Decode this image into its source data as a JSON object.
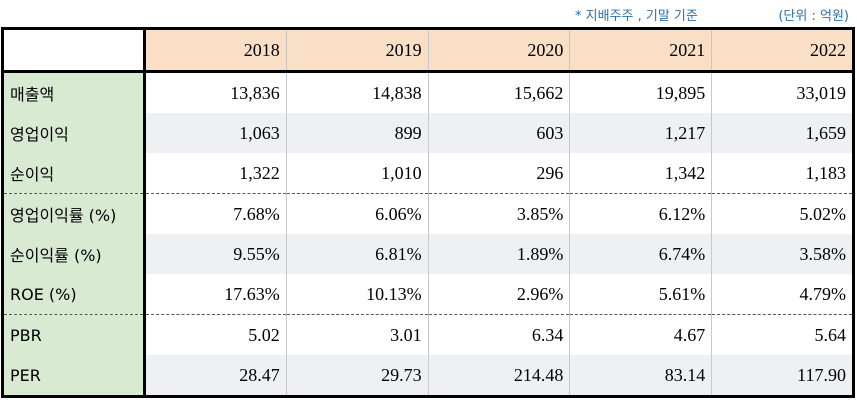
{
  "notes": {
    "basis": "* 지배주주 , 기말 기준",
    "unit": "(단위 : 억원)"
  },
  "table": {
    "years": [
      "2018",
      "2019",
      "2020",
      "2021",
      "2022"
    ],
    "rows": [
      {
        "label": "매출액",
        "values": [
          "13,836",
          "14,838",
          "15,662",
          "19,895",
          "33,019"
        ]
      },
      {
        "label": "영업이익",
        "values": [
          "1,063",
          "899",
          "603",
          "1,217",
          "1,659"
        ]
      },
      {
        "label": "순이익",
        "values": [
          "1,322",
          "1,010",
          "296",
          "1,342",
          "1,183"
        ]
      },
      {
        "label": "영업이익률 (%)",
        "values": [
          "7.68%",
          "6.06%",
          "3.85%",
          "6.12%",
          "5.02%"
        ]
      },
      {
        "label": "순이익률 (%)",
        "values": [
          "9.55%",
          "6.81%",
          "1.89%",
          "6.74%",
          "3.58%"
        ]
      },
      {
        "label": "ROE (%)",
        "values": [
          "17.63%",
          "10.13%",
          "2.96%",
          "5.61%",
          "4.79%"
        ]
      },
      {
        "label": "PBR",
        "values": [
          "5.02",
          "3.01",
          "6.34",
          "4.67",
          "5.64"
        ]
      },
      {
        "label": "PER",
        "values": [
          "28.47",
          "29.73",
          "214.48",
          "83.14",
          "117.90"
        ]
      }
    ]
  },
  "colors": {
    "header_fill": "#f9dfc6",
    "label_fill": "#d9ead3",
    "row_shade": "#eef0f4",
    "note_text": "#2f6fa8"
  }
}
